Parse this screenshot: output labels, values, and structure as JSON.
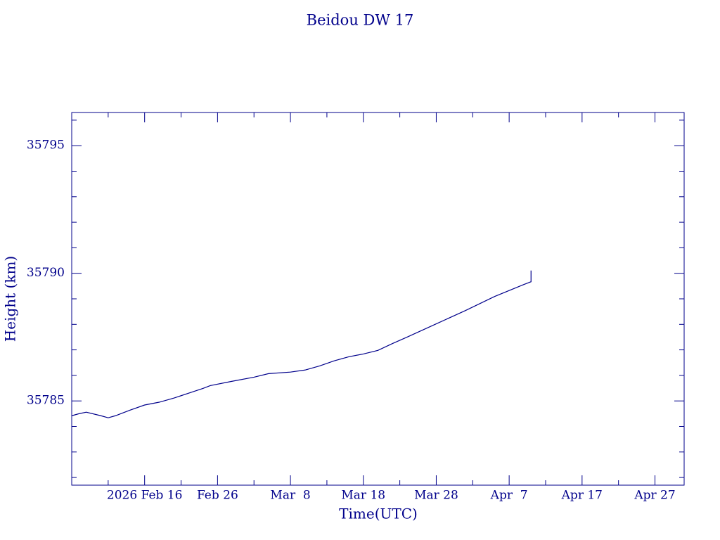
{
  "chart_data": {
    "type": "line",
    "title": "Beidou DW 17",
    "x_label": "Time(UTC)",
    "y_label": "Height (km)",
    "color": "#00008b",
    "x": [
      "2026-02-06",
      "2026-02-07",
      "2026-02-08",
      "2026-02-10",
      "2026-02-11",
      "2026-02-12",
      "2026-02-14",
      "2026-02-16",
      "2026-02-18",
      "2026-02-20",
      "2026-02-22",
      "2026-02-24",
      "2026-02-25",
      "2026-02-28",
      "2026-03-03",
      "2026-03-05",
      "2026-03-08",
      "2026-03-10",
      "2026-03-12",
      "2026-03-14",
      "2026-03-16",
      "2026-03-18",
      "2026-03-20",
      "2026-03-22",
      "2026-03-24",
      "2026-03-28",
      "2026-04-01",
      "2026-04-05",
      "2026-04-09",
      "2026-04-10",
      "2026-04-10"
    ],
    "values": [
      35784.42,
      35784.5,
      35784.56,
      35784.42,
      35784.34,
      35784.42,
      35784.64,
      35784.84,
      35784.95,
      35785.11,
      35785.3,
      35785.49,
      35785.6,
      35785.77,
      35785.93,
      35786.07,
      35786.13,
      35786.21,
      35786.37,
      35786.57,
      35786.73,
      35786.84,
      35786.98,
      35787.25,
      35787.5,
      35788.02,
      35788.54,
      35789.09,
      35789.56,
      35789.67,
      35790.11
    ],
    "xlim": [
      "2026-02-06",
      "2026-05-01"
    ],
    "xticks": [
      {
        "value": "2026-02-16",
        "label": "2026 Feb 16"
      },
      {
        "value": "2026-02-26",
        "label": "Feb 26"
      },
      {
        "value": "2026-03-08",
        "label": "Mar  8"
      },
      {
        "value": "2026-03-18",
        "label": "Mar 18"
      },
      {
        "value": "2026-03-28",
        "label": "Mar 28"
      },
      {
        "value": "2026-04-07",
        "label": "Apr  7"
      },
      {
        "value": "2026-04-17",
        "label": "Apr 17"
      },
      {
        "value": "2026-04-27",
        "label": "Apr 27"
      }
    ],
    "xminorticks": [
      "2026-02-11",
      "2026-02-21",
      "2026-03-03",
      "2026-03-13",
      "2026-03-23",
      "2026-04-02",
      "2026-04-12",
      "2026-04-22"
    ],
    "ylim": [
      35781.7,
      35796.3
    ],
    "yticks": [
      35785,
      35790,
      35795
    ],
    "yminorticks": [
      35782,
      35783,
      35784,
      35786,
      35787,
      35788,
      35789,
      35791,
      35792,
      35793,
      35794,
      35796
    ]
  }
}
